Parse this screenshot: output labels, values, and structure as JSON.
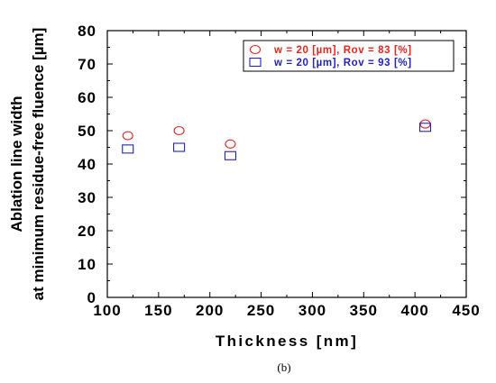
{
  "chart_data": {
    "type": "scatter",
    "caption": "(b)",
    "xlabel": "Thickness [nm]",
    "ylabel": [
      "Ablation line width",
      "at minimum residue-free fluence [µm]"
    ],
    "xlim": [
      100,
      450
    ],
    "ylim": [
      0,
      80
    ],
    "xticks": [
      100,
      150,
      200,
      250,
      300,
      350,
      400,
      450
    ],
    "yticks": [
      0,
      10,
      20,
      30,
      40,
      50,
      60,
      70,
      80
    ],
    "grid": false,
    "legend_position": "top-right",
    "series": [
      {
        "name": "w = 20 [µm],  Rov = 83 [%]",
        "marker": "circle",
        "color": "#e8231e",
        "x": [
          120,
          170,
          220,
          410
        ],
        "y": [
          48.5,
          50,
          46,
          52
        ]
      },
      {
        "name": "w = 20 [µm],  Rov = 93 [%]",
        "marker": "square",
        "color": "#2323b4",
        "x": [
          120,
          170,
          220,
          410
        ],
        "y": [
          44.5,
          45,
          42.5,
          51
        ]
      }
    ]
  }
}
